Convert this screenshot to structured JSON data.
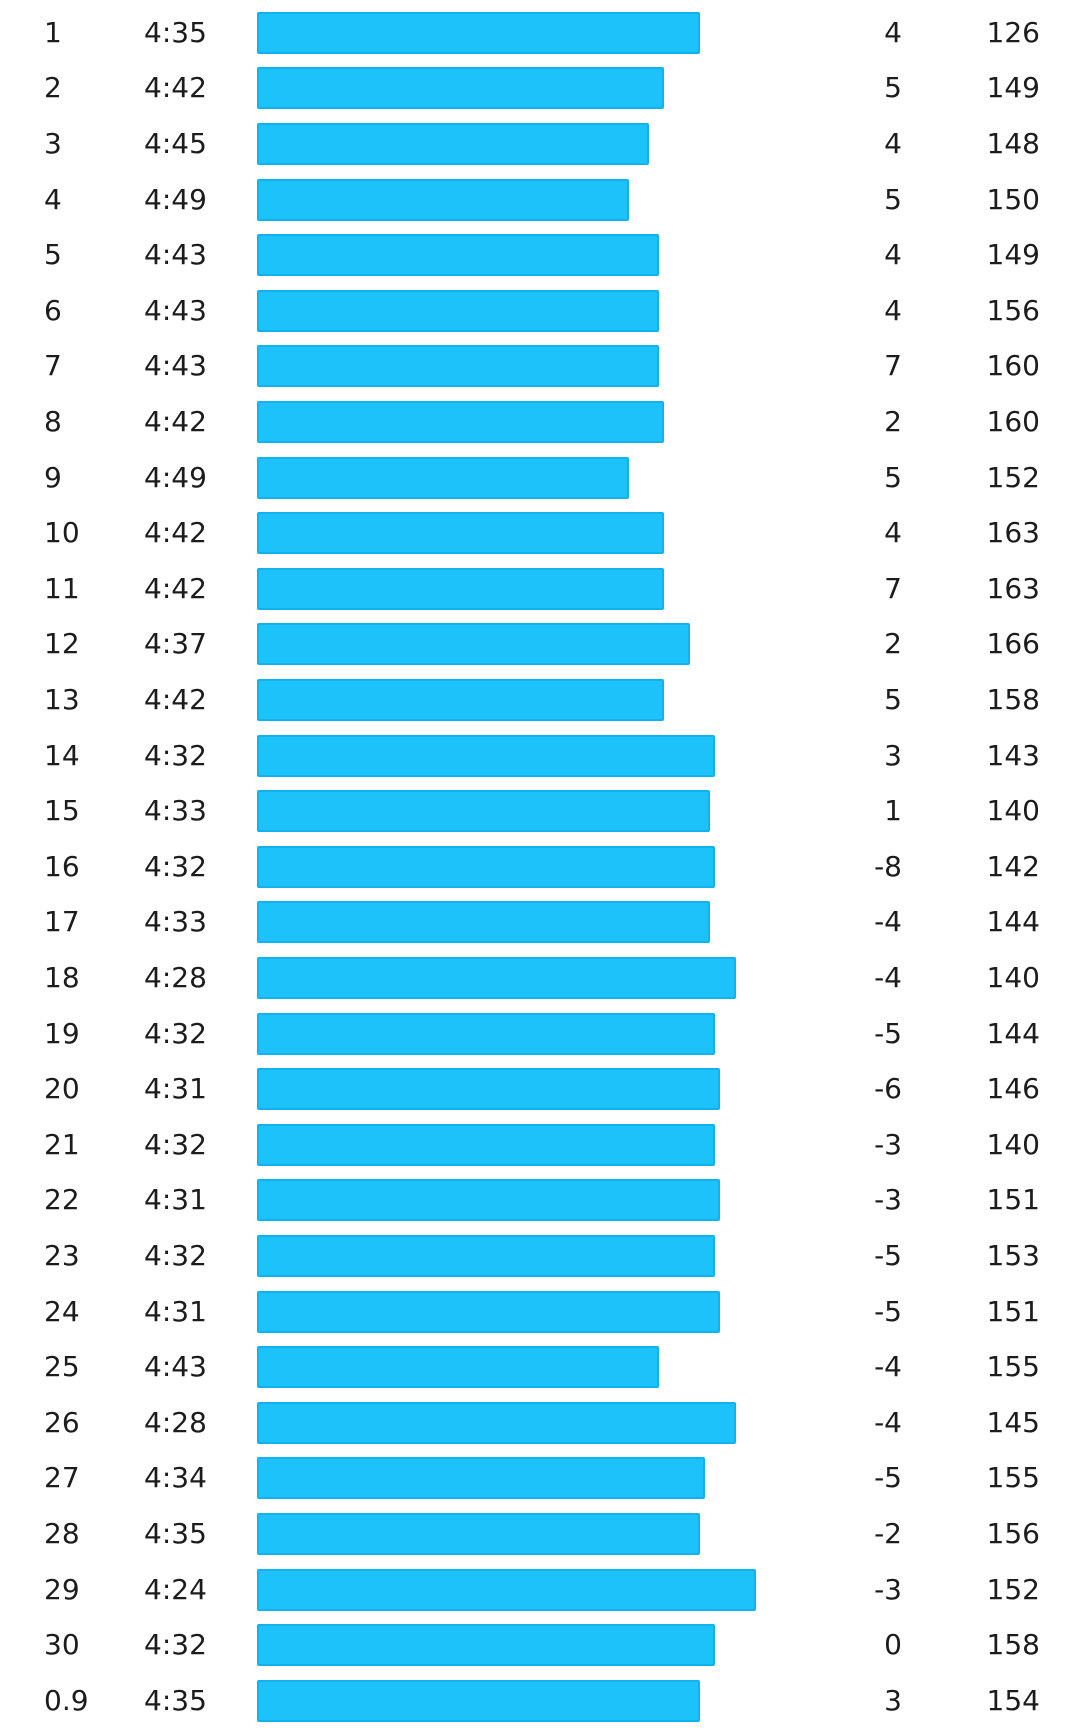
{
  "chart_data": {
    "type": "bar",
    "orientation": "horizontal",
    "bar_color": "#1ec2fa",
    "columns": [
      "km",
      "pace",
      "pace_bar",
      "elevation",
      "heart_rate"
    ],
    "categories": [
      "1",
      "2",
      "3",
      "4",
      "5",
      "6",
      "7",
      "8",
      "9",
      "10",
      "11",
      "12",
      "13",
      "14",
      "15",
      "16",
      "17",
      "18",
      "19",
      "20",
      "21",
      "22",
      "23",
      "24",
      "25",
      "26",
      "27",
      "28",
      "29",
      "30",
      "0.9"
    ],
    "pace": [
      "4:35",
      "4:42",
      "4:45",
      "4:49",
      "4:43",
      "4:43",
      "4:43",
      "4:42",
      "4:49",
      "4:42",
      "4:42",
      "4:37",
      "4:42",
      "4:32",
      "4:33",
      "4:32",
      "4:33",
      "4:28",
      "4:32",
      "4:31",
      "4:32",
      "4:31",
      "4:32",
      "4:31",
      "4:43",
      "4:28",
      "4:34",
      "4:35",
      "4:24",
      "4:32",
      "4:35"
    ],
    "elevation": [
      "4",
      "5",
      "4",
      "5",
      "4",
      "4",
      "7",
      "2",
      "5",
      "4",
      "7",
      "2",
      "5",
      "3",
      "1",
      "-8",
      "-4",
      "-4",
      "-5",
      "-6",
      "-3",
      "-3",
      "-5",
      "-5",
      "-4",
      "-4",
      "-5",
      "-2",
      "-3",
      "0",
      "3"
    ],
    "heart_rate": [
      "126",
      "149",
      "148",
      "150",
      "149",
      "156",
      "160",
      "160",
      "152",
      "163",
      "163",
      "166",
      "158",
      "143",
      "140",
      "142",
      "144",
      "140",
      "144",
      "146",
      "140",
      "151",
      "153",
      "151",
      "155",
      "145",
      "155",
      "156",
      "152",
      "158",
      "154"
    ]
  }
}
